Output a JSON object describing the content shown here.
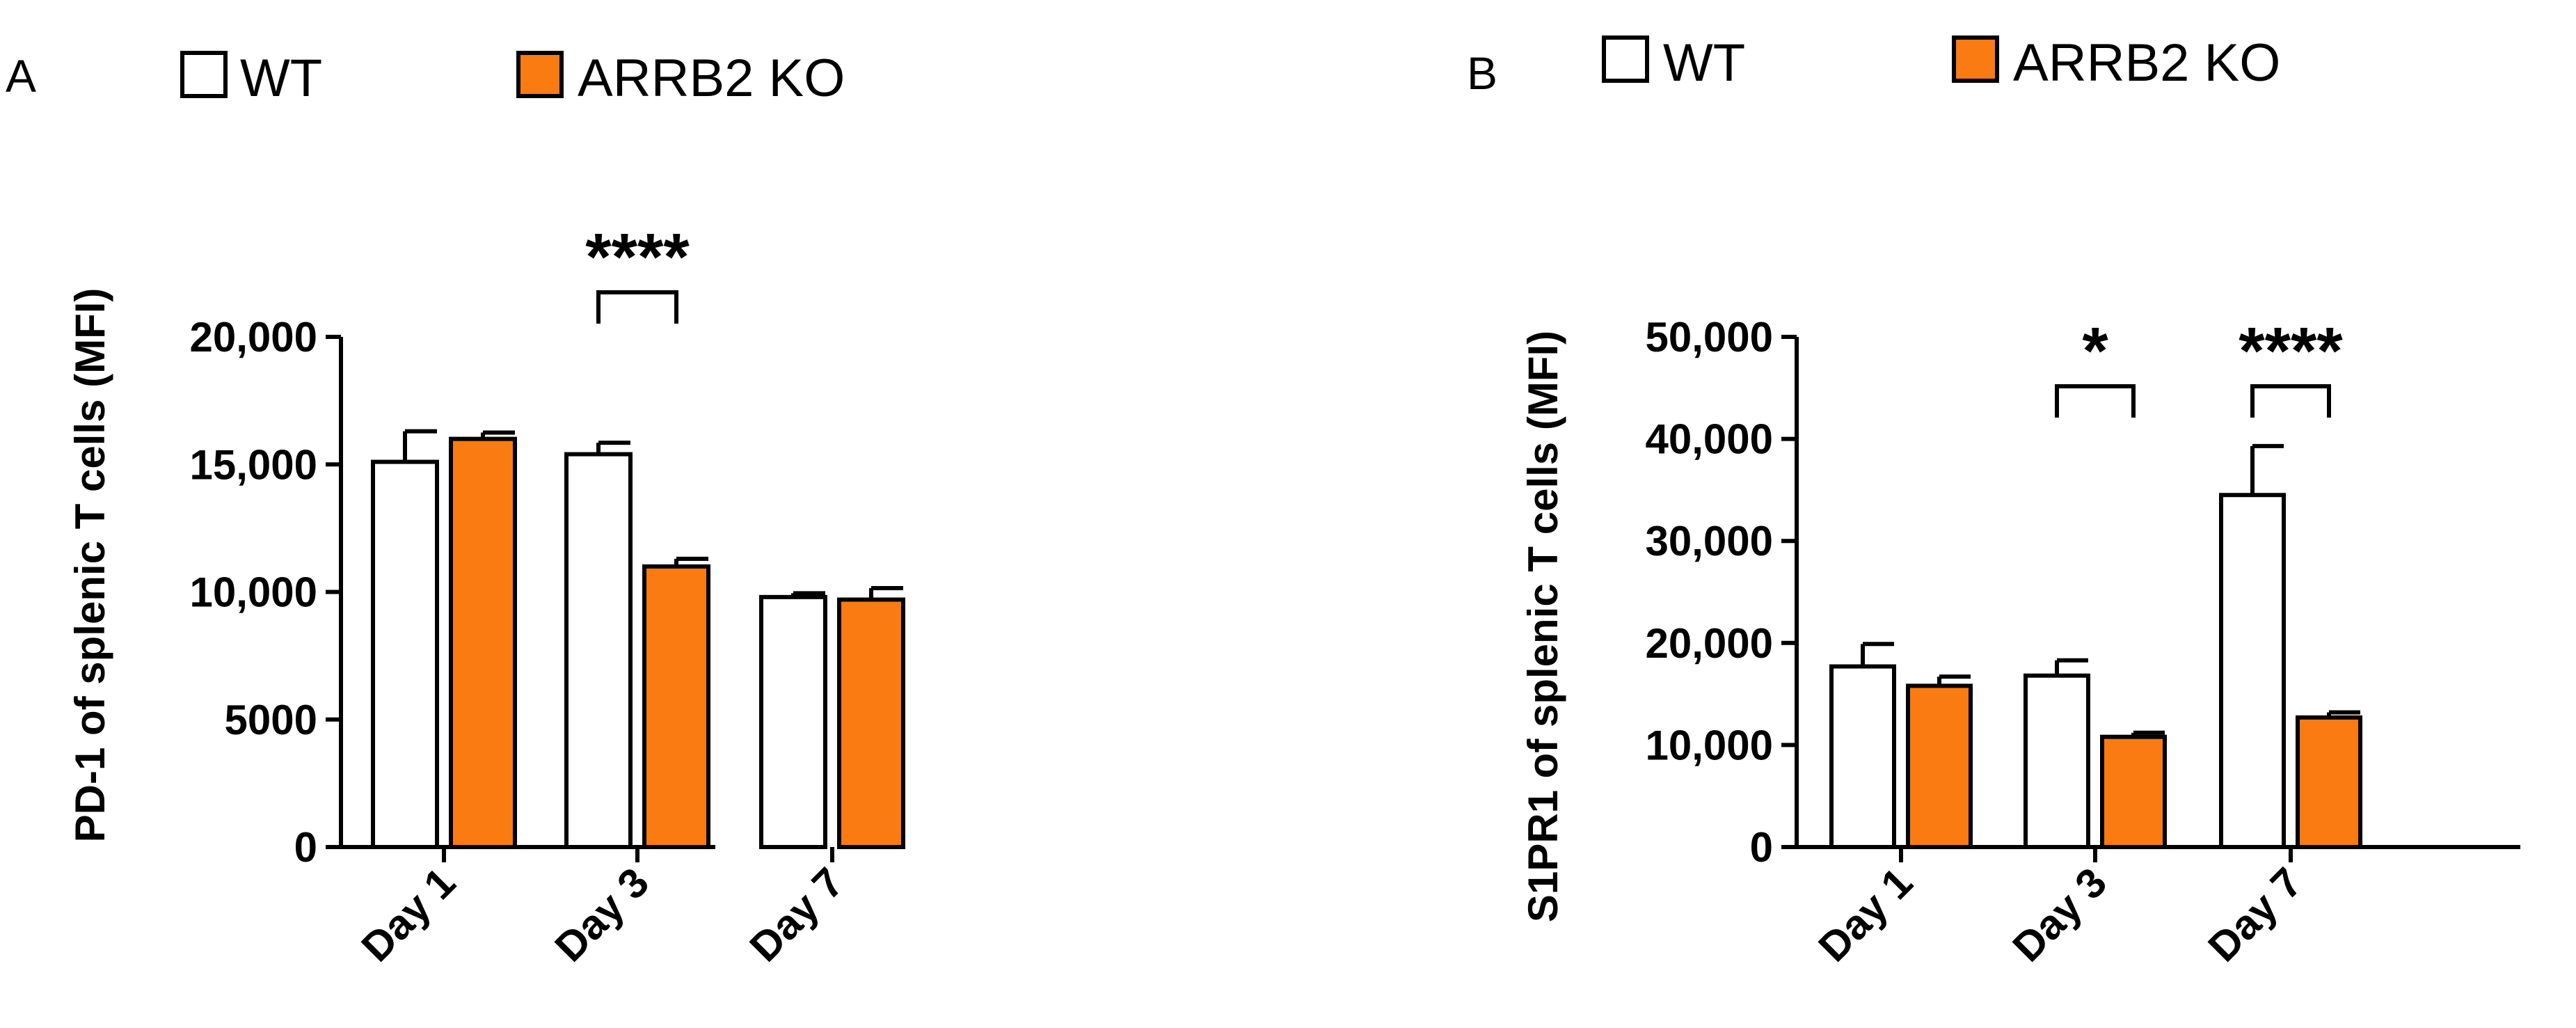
{
  "colors": {
    "WT": "#ffffff",
    "ARRB2 KO": "#f97b12",
    "axis": "#000000"
  },
  "chart_data": [
    {
      "type": "bar",
      "panel_label": "A",
      "title": "",
      "legend": [
        "WT",
        "ARRB2 KO"
      ],
      "ylabel": "PD-1 of splenic T cells (MFI)",
      "xlabel": "",
      "categories": [
        "Day 1",
        "Day 3",
        "Day 7"
      ],
      "series": [
        {
          "name": "WT",
          "values": [
            15100,
            15400,
            9800
          ],
          "errors": [
            1200,
            450,
            150
          ]
        },
        {
          "name": "ARRB2 KO",
          "values": [
            16000,
            11000,
            9700
          ],
          "errors": [
            250,
            300,
            450
          ]
        }
      ],
      "ylim": [
        0,
        20000
      ],
      "yticks": [
        0,
        5000,
        10000,
        15000,
        20000
      ],
      "ytick_labels": [
        "0",
        "5000",
        "10,000",
        "15,000",
        "20,000"
      ],
      "significance": [
        {
          "category": "Day 3",
          "label": "****"
        }
      ]
    },
    {
      "type": "bar",
      "panel_label": "B",
      "title": "",
      "legend": [
        "WT",
        "ARRB2 KO"
      ],
      "ylabel": "S1PR1 of splenic T cells (MFI)",
      "xlabel": "",
      "categories": [
        "Day 1",
        "Day 3",
        "Day 7"
      ],
      "series": [
        {
          "name": "WT",
          "values": [
            17700,
            16800,
            34500
          ],
          "errors": [
            2200,
            1500,
            4800
          ]
        },
        {
          "name": "ARRB2 KO",
          "values": [
            15800,
            10800,
            12700
          ],
          "errors": [
            900,
            400,
            500
          ]
        }
      ],
      "ylim": [
        0,
        50000
      ],
      "yticks": [
        0,
        10000,
        20000,
        30000,
        40000,
        50000
      ],
      "ytick_labels": [
        "0",
        "10,000",
        "20,000",
        "30,000",
        "40,000",
        "50,000"
      ],
      "significance": [
        {
          "category": "Day 3",
          "label": "*"
        },
        {
          "category": "Day 7",
          "label": "****"
        }
      ]
    }
  ]
}
